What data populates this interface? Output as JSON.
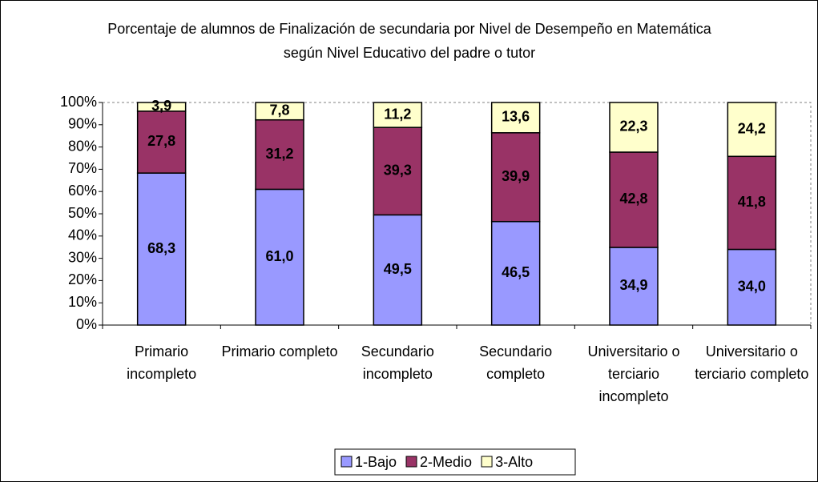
{
  "chart_data": {
    "type": "stacked_bar",
    "title": "Porcentaje de alumnos de Finalización de secundaria por Nivel de Desempeño en Matemática según Nivel Educativo del padre o tutor",
    "categories": [
      "Primario incompleto",
      "Primario completo",
      "Secundario incompleto",
      "Secundario completo",
      "Universitario o terciario incompleto",
      "Universitario o terciario completo"
    ],
    "series": [
      {
        "name": "1-Bajo",
        "color": "#9999ff",
        "values": [
          68.3,
          61.0,
          49.5,
          46.5,
          34.9,
          34.0
        ],
        "value_labels": [
          "68,3",
          "61,0",
          "49,5",
          "46,5",
          "34,9",
          "34,0"
        ]
      },
      {
        "name": "2-Medio",
        "color": "#993366",
        "values": [
          27.8,
          31.2,
          39.3,
          39.9,
          42.8,
          41.8
        ],
        "value_labels": [
          "27,8",
          "31,2",
          "39,3",
          "39,9",
          "42,8",
          "41,8"
        ]
      },
      {
        "name": "3-Alto",
        "color": "#ffffcc",
        "values": [
          3.9,
          7.8,
          11.2,
          13.6,
          22.3,
          24.2
        ],
        "value_labels": [
          "3,9",
          "7,8",
          "11,2",
          "13,6",
          "22,3",
          "24,2"
        ]
      }
    ],
    "ylim": [
      0,
      100
    ],
    "yticks": [
      {
        "value": 0,
        "label": "0%"
      },
      {
        "value": 10,
        "label": "10%"
      },
      {
        "value": 20,
        "label": "20%"
      },
      {
        "value": 30,
        "label": "30%"
      },
      {
        "value": 40,
        "label": "40%"
      },
      {
        "value": 50,
        "label": "50%"
      },
      {
        "value": 60,
        "label": "60%"
      },
      {
        "value": 70,
        "label": "70%"
      },
      {
        "value": 80,
        "label": "80%"
      },
      {
        "value": 90,
        "label": "90%"
      },
      {
        "value": 100,
        "label": "100%"
      }
    ],
    "grid": false,
    "legend": "bottom"
  }
}
